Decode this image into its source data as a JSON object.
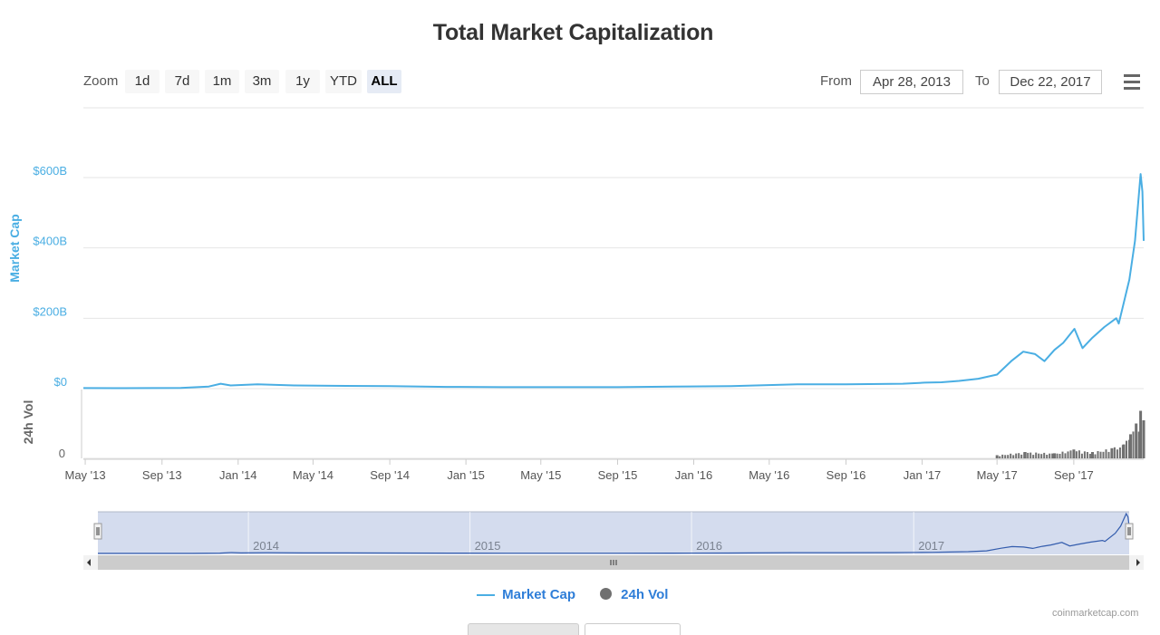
{
  "title": "Total Market Capitalization",
  "zoom": {
    "label": "Zoom",
    "buttons": [
      "1d",
      "7d",
      "1m",
      "3m",
      "1y",
      "YTD",
      "ALL"
    ],
    "active": "ALL"
  },
  "range": {
    "from_label": "From",
    "from_value": "Apr 28, 2013",
    "to_label": "To",
    "to_value": "Dec 22, 2017"
  },
  "menu": {
    "icon": "hamburger-menu-icon"
  },
  "colors": {
    "market_cap": "#4aaee3",
    "volume": "#707070",
    "navigator_fill": "#ccd6eb",
    "accent_text": "#2f7ed8"
  },
  "chart_data": {
    "type": "line",
    "xaxis": {
      "ticks": [
        "May '13",
        "Sep '13",
        "Jan '14",
        "May '14",
        "Sep '14",
        "Jan '15",
        "May '15",
        "Sep '15",
        "Jan '16",
        "May '16",
        "Sep '16",
        "Jan '17",
        "May '17",
        "Sep '17"
      ],
      "range": [
        "2013-04-28",
        "2017-12-22"
      ]
    },
    "yaxis_market_cap": {
      "label": "Market Cap",
      "ticks": [
        "$0",
        "$200B",
        "$400B",
        "$600B"
      ],
      "ylim": [
        0,
        700
      ]
    },
    "yaxis_volume": {
      "label": "24h Vol",
      "ticks": [
        "0"
      ]
    },
    "series": [
      {
        "name": "Market Cap",
        "unit": "billion USD",
        "x": [
          "2013-04-28",
          "2013-07-01",
          "2013-10-01",
          "2013-11-15",
          "2013-12-04",
          "2013-12-20",
          "2014-02-01",
          "2014-04-01",
          "2014-06-01",
          "2014-09-01",
          "2014-12-01",
          "2015-03-01",
          "2015-06-01",
          "2015-09-01",
          "2015-12-01",
          "2016-03-01",
          "2016-06-15",
          "2016-09-01",
          "2016-12-01",
          "2017-01-05",
          "2017-02-01",
          "2017-03-01",
          "2017-04-01",
          "2017-05-01",
          "2017-05-25",
          "2017-06-12",
          "2017-07-01",
          "2017-07-16",
          "2017-08-01",
          "2017-08-15",
          "2017-09-02",
          "2017-09-15",
          "2017-10-01",
          "2017-10-20",
          "2017-11-08",
          "2017-11-12",
          "2017-11-29",
          "2017-12-08",
          "2017-12-17",
          "2017-12-20",
          "2017-12-22"
        ],
        "values": [
          1.5,
          1.2,
          2,
          6,
          14,
          9,
          12,
          9,
          8,
          7,
          5,
          4,
          4,
          4,
          6,
          7,
          12,
          12,
          14,
          17,
          18,
          22,
          28,
          40,
          80,
          105,
          98,
          78,
          110,
          130,
          170,
          115,
          145,
          175,
          200,
          185,
          310,
          420,
          610,
          560,
          420
        ]
      },
      {
        "name": "24h Vol",
        "unit": "relative",
        "x": [
          "2017-05-01",
          "2017-06-15",
          "2017-08-01",
          "2017-09-01",
          "2017-10-01",
          "2017-11-01",
          "2017-11-20",
          "2017-12-01",
          "2017-12-10",
          "2017-12-17",
          "2017-12-22"
        ],
        "values": [
          5,
          10,
          8,
          14,
          10,
          16,
          22,
          38,
          55,
          75,
          60
        ]
      }
    ],
    "navigator": {
      "labels": [
        "2014",
        "2015",
        "2016",
        "2017"
      ]
    },
    "legend": {
      "items": [
        "Market Cap",
        "24h Vol"
      ],
      "placement": "bottom-center"
    },
    "credits": "coinmarketcap.com",
    "grid": true
  }
}
